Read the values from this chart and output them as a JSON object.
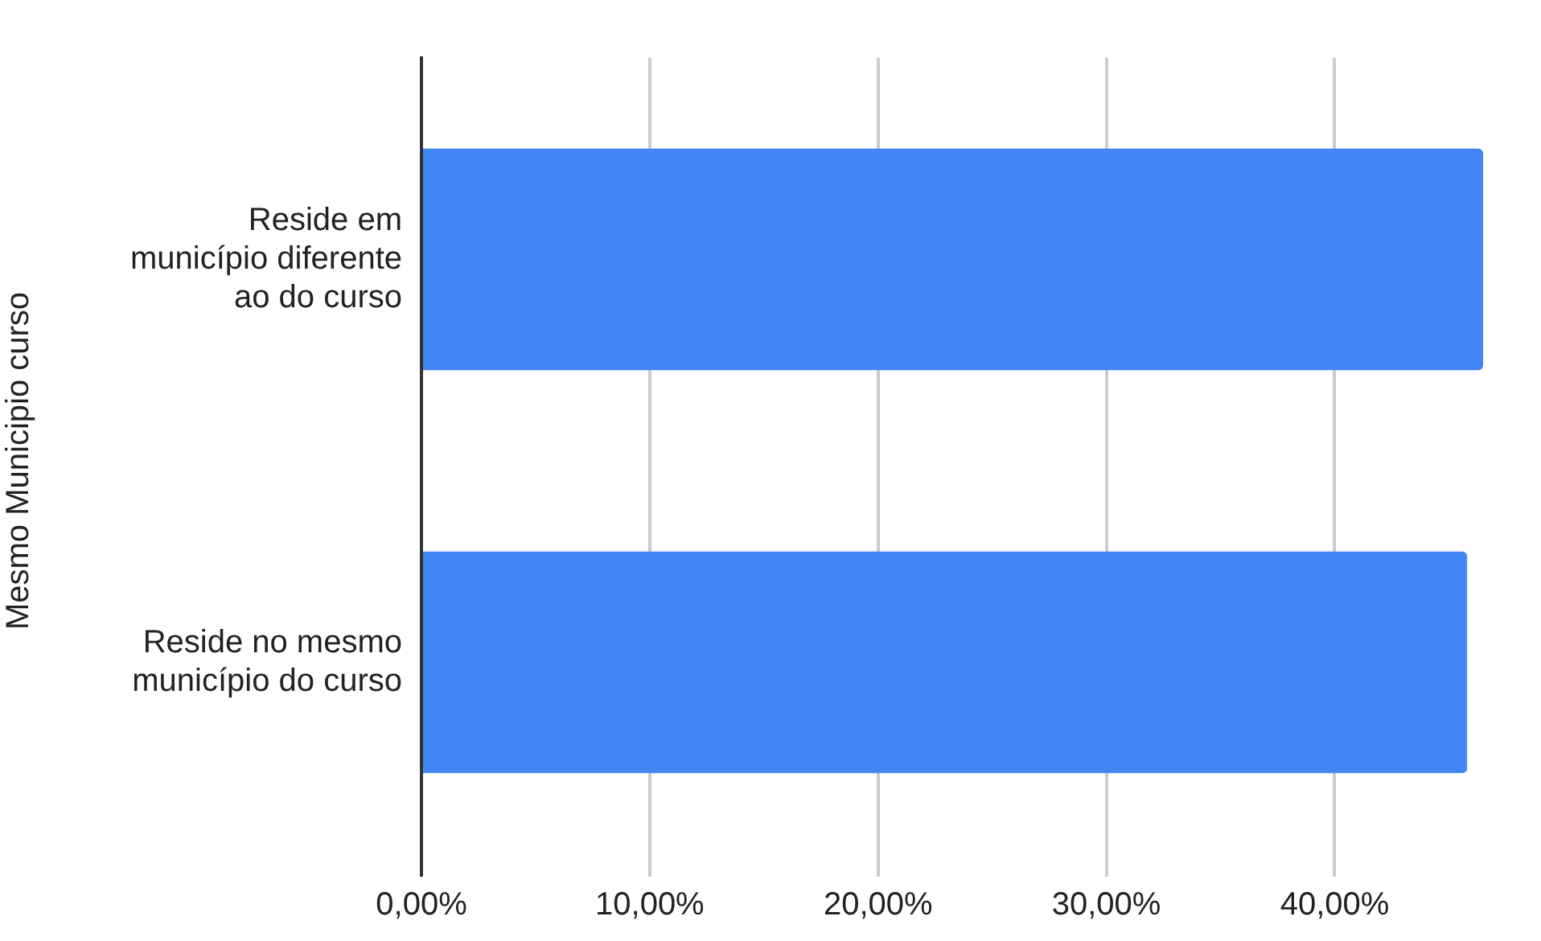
{
  "chart_data": {
    "type": "bar",
    "orientation": "horizontal",
    "ylabel": "Mesmo Municipio curso",
    "categories": [
      "Reside em município diferente ao do curso",
      "Reside no mesmo município do curso"
    ],
    "values": [
      46.5,
      45.8
    ],
    "color": "#4285f4",
    "xlim": [
      0,
      46.5
    ],
    "xticks": [
      {
        "value": 0,
        "label": "0,00%"
      },
      {
        "value": 10,
        "label": "10,00%"
      },
      {
        "value": 20,
        "label": "20,00%"
      },
      {
        "value": 30,
        "label": "30,00%"
      },
      {
        "value": 40,
        "label": "40,00%"
      }
    ],
    "grid": "x",
    "legend": false
  }
}
